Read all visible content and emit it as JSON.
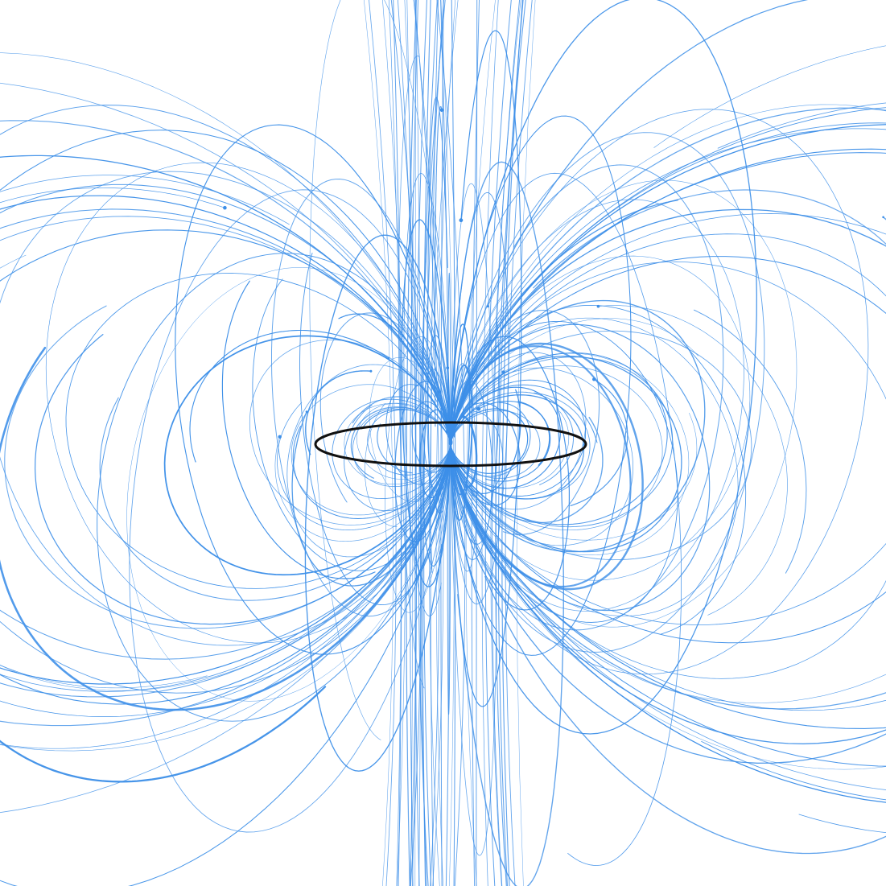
{
  "diagram": {
    "type": "magnetic-field-lines",
    "subject": "current loop",
    "colors": {
      "background": "#ffffff",
      "field_line": "#3d8fe8",
      "loop": "#111111"
    },
    "components": [
      {
        "kind": "current-loop",
        "count": 1
      },
      {
        "kind": "field-lines",
        "count": 150
      }
    ],
    "labels": []
  }
}
